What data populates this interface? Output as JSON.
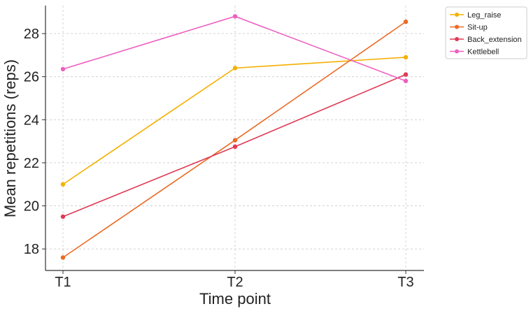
{
  "chart_data": {
    "type": "line",
    "x": [
      "T1",
      "T2",
      "T3"
    ],
    "xlabel": "Time point",
    "ylabel": "Mean repetitions (reps)",
    "ylim": [
      17.0,
      29.3
    ],
    "yticks": [
      18,
      20,
      22,
      24,
      26,
      28
    ],
    "grid": true,
    "legend_position": "top-right outside",
    "series": [
      {
        "name": "Leg_raise",
        "color": "#f4b000",
        "values": [
          21.0,
          26.4,
          26.9
        ]
      },
      {
        "name": "Sit-up",
        "color": "#eb6b25",
        "values": [
          17.6,
          23.05,
          28.55
        ]
      },
      {
        "name": "Back_extension",
        "color": "#e03a55",
        "values": [
          19.5,
          22.75,
          26.1
        ]
      },
      {
        "name": "Kettlebell",
        "color": "#ee5fc0",
        "values": [
          26.35,
          28.8,
          25.8
        ]
      }
    ]
  }
}
